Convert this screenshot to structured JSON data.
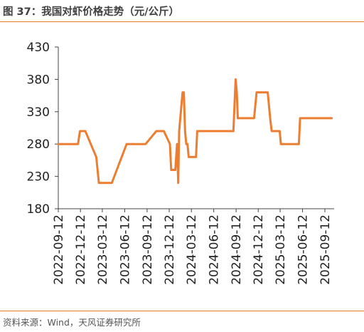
{
  "header": {
    "title": "图 37：我国对虾价格走势（元/公斤）"
  },
  "footer": {
    "source": "资料来源：Wind，天风证券研究所"
  },
  "colors": {
    "accent": "#e8791e",
    "line": "#ed7d31"
  },
  "chart_data": {
    "type": "line",
    "title": "",
    "xlabel": "",
    "ylabel": "",
    "ylim": [
      180,
      430
    ],
    "yticks": [
      180,
      230,
      280,
      330,
      380,
      430
    ],
    "xlim": [
      "2022-09-12",
      "2025-10-20"
    ],
    "xticks": [
      "2022-09-12",
      "2022-12-12",
      "2023-03-12",
      "2023-06-12",
      "2023-09-12",
      "2023-12-12",
      "2024-03-12",
      "2024-06-12",
      "2024-09-12",
      "2024-12-12",
      "2025-03-12",
      "2025-06-12",
      "2025-09-12"
    ],
    "grid": false,
    "legend": "none",
    "series": [
      {
        "color": "#ed7d31",
        "x": [
          "2022-09-12",
          "2022-11-25",
          "2022-12-02",
          "2022-12-10",
          "2023-01-01",
          "2023-02-15",
          "2023-02-26",
          "2023-03-05",
          "2023-04-20",
          "2023-06-20",
          "2023-09-01",
          "2023-09-06",
          "2023-10-20",
          "2023-10-28",
          "2023-11-20",
          "2023-12-15",
          "2023-12-20",
          "2023-12-25",
          "2024-01-01",
          "2024-01-03",
          "2024-01-06",
          "2024-01-13",
          "2024-01-18",
          "2024-01-22",
          "2024-02-05",
          "2024-02-10",
          "2024-02-15",
          "2024-02-20",
          "2024-02-25",
          "2024-03-01",
          "2024-03-31",
          "2024-04-05",
          "2024-05-10",
          "2024-07-01",
          "2024-08-01",
          "2024-09-01",
          "2024-09-10",
          "2024-09-15",
          "2024-09-19",
          "2024-09-24",
          "2024-10-20",
          "2024-11-25",
          "2024-12-05",
          "2024-12-20",
          "2025-01-20",
          "2025-01-30",
          "2025-02-05",
          "2025-02-20",
          "2025-03-10",
          "2025-03-15",
          "2025-04-15",
          "2025-05-28",
          "2025-06-02",
          "2025-07-01",
          "2025-10-10"
        ],
        "values": [
          280,
          280,
          280,
          300,
          300,
          260,
          220,
          220,
          220,
          280,
          280,
          280,
          300,
          300,
          300,
          280,
          240,
          240,
          240,
          240,
          240,
          280,
          220,
          300,
          360,
          360,
          300,
          280,
          280,
          260,
          260,
          300,
          300,
          300,
          300,
          300,
          380,
          360,
          320,
          320,
          320,
          320,
          360,
          360,
          360,
          320,
          300,
          300,
          300,
          280,
          280,
          280,
          320,
          320,
          320
        ]
      }
    ]
  }
}
